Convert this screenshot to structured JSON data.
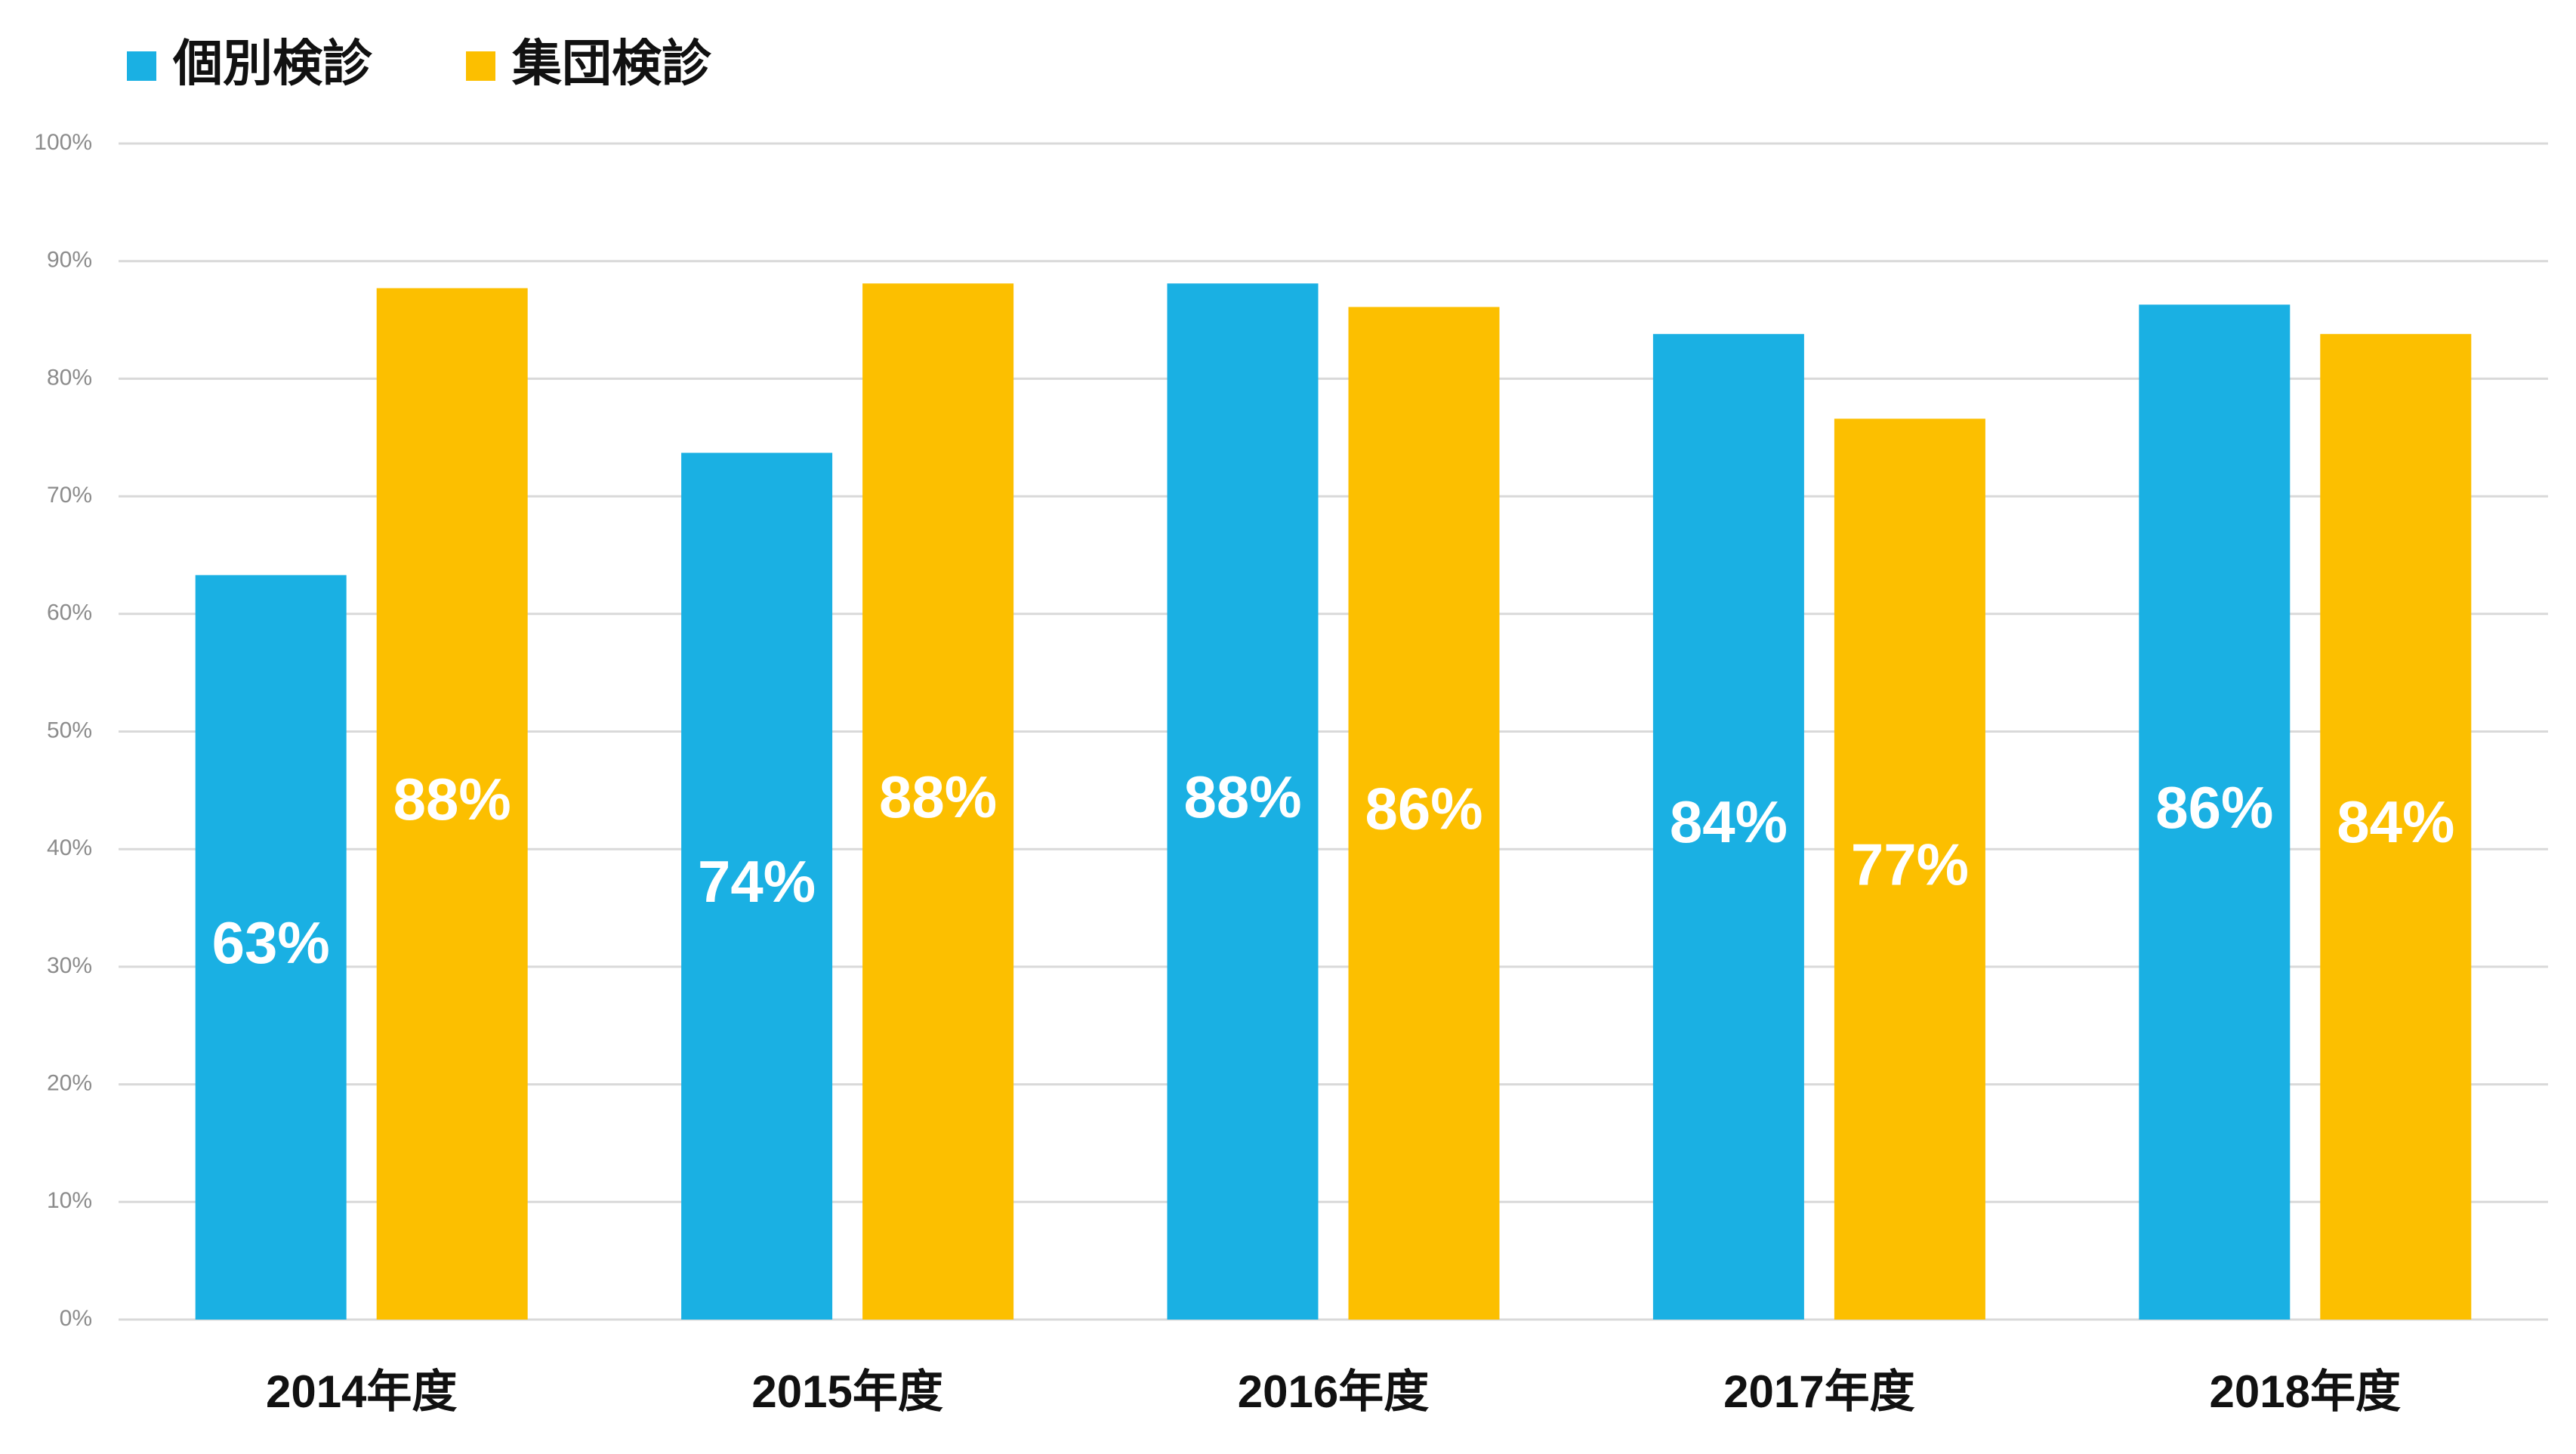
{
  "chart_data": {
    "type": "bar",
    "categories": [
      "2014年度",
      "2015年度",
      "2016年度",
      "2017年度",
      "2018年度"
    ],
    "series": [
      {
        "name": "個別検診",
        "color": "#1ab0e3",
        "values": [
          63.3,
          73.7,
          88.1,
          83.8,
          86.3
        ],
        "value_labels": [
          "63%",
          "74%",
          "88%",
          "84%",
          "86%"
        ]
      },
      {
        "name": "集団検診",
        "color": "#fcbf00",
        "values": [
          87.7,
          88.1,
          86.1,
          76.6,
          83.8
        ],
        "value_labels": [
          "88%",
          "88%",
          "86%",
          "77%",
          "84%"
        ]
      }
    ],
    "ylim": [
      0,
      100
    ],
    "yticks": [
      {
        "value": 0,
        "label": "0%"
      },
      {
        "value": 10,
        "label": "10%"
      },
      {
        "value": 20,
        "label": "20%"
      },
      {
        "value": 30,
        "label": "30%"
      },
      {
        "value": 40,
        "label": "40%"
      },
      {
        "value": 50,
        "label": "50%"
      },
      {
        "value": 60,
        "label": "60%"
      },
      {
        "value": 70,
        "label": "70%"
      },
      {
        "value": 80,
        "label": "80%"
      },
      {
        "value": 90,
        "label": "90%"
      },
      {
        "value": 100,
        "label": "100%"
      }
    ],
    "grid": true,
    "legend": "top-left"
  }
}
